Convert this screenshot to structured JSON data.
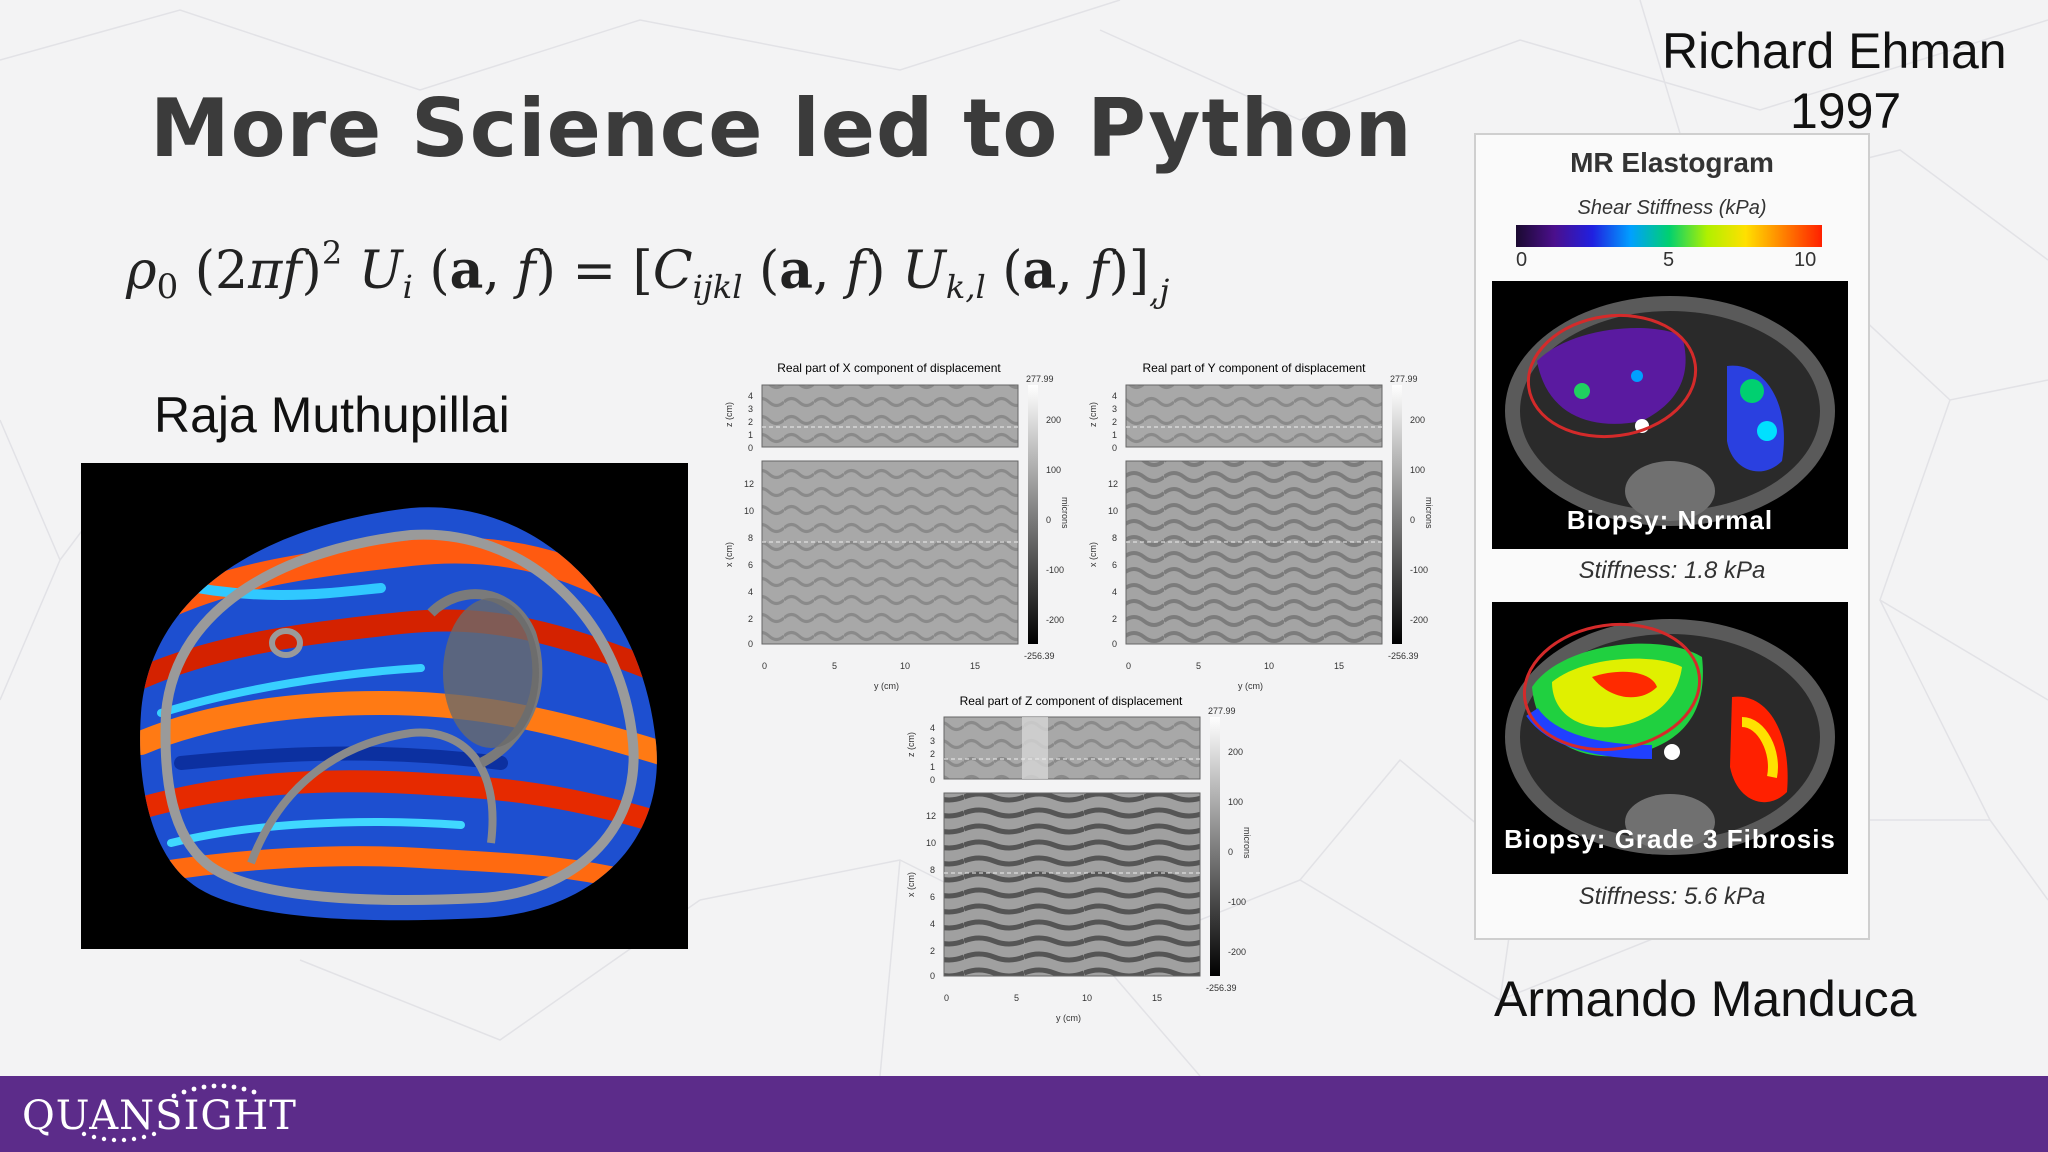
{
  "slide": {
    "title": "More Science led to Python",
    "equation_latex": "\\rho_0 (2\\pi f)^2 U_i(\\mathbf{a},f) = [C_{ijkl}(\\mathbf{a},f) U_{k,l}(\\mathbf{a},f)]_{,j}"
  },
  "captions": {
    "left_person": "Raja Muthupillai",
    "top_right_person": "Richard Ehman",
    "top_right_year": "1997",
    "bottom_right_person": "Armando Manduca"
  },
  "plots": [
    {
      "title": "Real part of X component of displacement",
      "z_label": "z (cm)",
      "x_label": "x (cm)",
      "y_label": "y (cm)",
      "z_ticks": [
        "4",
        "3",
        "2",
        "1",
        "0"
      ],
      "x_ticks": [
        "12",
        "10",
        "8",
        "6",
        "4",
        "2",
        "0"
      ],
      "y_ticks": [
        "0",
        "5",
        "10",
        "15"
      ],
      "colorbar_label": "microns",
      "colorbar_max": "277.99",
      "colorbar_ticks": [
        "200",
        "100",
        "0",
        "-100",
        "-200"
      ],
      "colorbar_min": "-256.39"
    },
    {
      "title": "Real part of Y component of displacement",
      "z_label": "z (cm)",
      "x_label": "x (cm)",
      "y_label": "y (cm)",
      "z_ticks": [
        "4",
        "3",
        "2",
        "1",
        "0"
      ],
      "x_ticks": [
        "12",
        "10",
        "8",
        "6",
        "4",
        "2",
        "0"
      ],
      "y_ticks": [
        "0",
        "5",
        "10",
        "15"
      ],
      "colorbar_label": "microns",
      "colorbar_max": "277.99",
      "colorbar_ticks": [
        "200",
        "100",
        "0",
        "-100",
        "-200"
      ],
      "colorbar_min": "-256.39"
    },
    {
      "title": "Real part of Z component of displacement",
      "z_label": "z (cm)",
      "x_label": "x (cm)",
      "y_label": "y (cm)",
      "z_ticks": [
        "4",
        "3",
        "2",
        "1",
        "0"
      ],
      "x_ticks": [
        "12",
        "10",
        "8",
        "6",
        "4",
        "2",
        "0"
      ],
      "y_ticks": [
        "0",
        "5",
        "10",
        "15"
      ],
      "colorbar_label": "microns",
      "colorbar_max": "277.99",
      "colorbar_ticks": [
        "200",
        "100",
        "0",
        "-100",
        "-200"
      ],
      "colorbar_min": "-256.39"
    }
  ],
  "elastogram": {
    "title": "MR Elastogram",
    "scale_label": "Shear Stiffness (kPa)",
    "scale_ticks": [
      "0",
      "5",
      "10"
    ],
    "panels": [
      {
        "biopsy": "Biopsy: Normal",
        "stiffness": "Stiffness: 1.8 kPa"
      },
      {
        "biopsy": "Biopsy: Grade 3 Fibrosis",
        "stiffness": "Stiffness: 5.6 kPa"
      }
    ]
  },
  "footer": {
    "logo_text": "QUANSIGHT"
  },
  "colors": {
    "footer_purple": "#5c2c8a",
    "title_gray": "#3b3b3b",
    "ellipse_red": "#d42a2a"
  }
}
